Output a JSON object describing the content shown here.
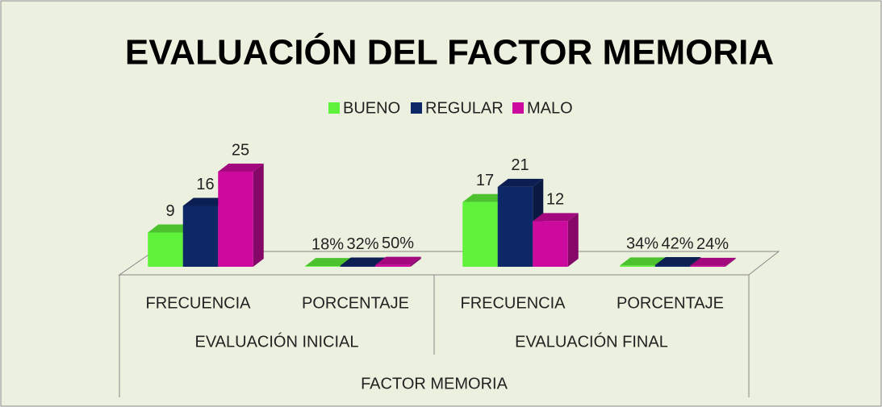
{
  "chart_data": {
    "type": "bar3d",
    "title": "EVALUACIÓN DEL FACTOR MEMORIA",
    "categories": [
      "FRECUENCIA",
      "PORCENTAJE",
      "FRECUENCIA",
      "PORCENTAJE"
    ],
    "groups": [
      "EVALUACIÓN INICIAL",
      "EVALUACIÓN FINAL"
    ],
    "outer_group": "FACTOR MEMORIA",
    "series": [
      {
        "name": "BUENO",
        "color": "#5ef23a",
        "values": [
          9,
          0.18,
          17,
          0.34
        ],
        "value_labels": [
          "9",
          "18%",
          "17",
          "34%"
        ]
      },
      {
        "name": "REGULAR",
        "color": "#0e2766",
        "values": [
          16,
          0.32,
          21,
          0.42
        ],
        "value_labels": [
          "16",
          "32%",
          "21",
          "42%"
        ]
      },
      {
        "name": "MALO",
        "color": "#cc0a9e",
        "values": [
          25,
          0.5,
          12,
          0.24
        ],
        "value_labels": [
          "25",
          "50%",
          "12",
          "24%"
        ]
      }
    ],
    "legend": "top"
  }
}
